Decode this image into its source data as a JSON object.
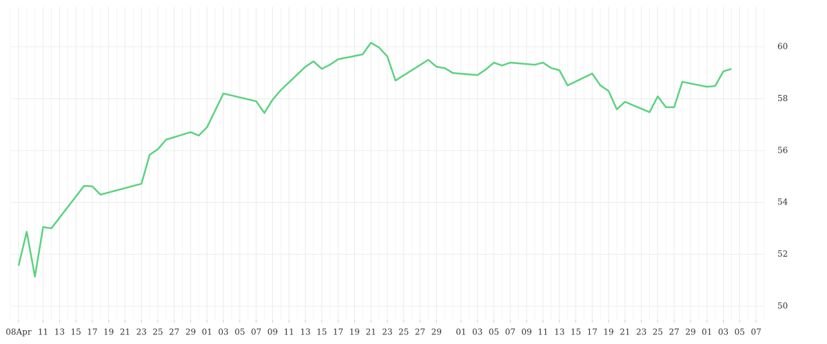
{
  "chart_data": {
    "type": "line",
    "x": [
      "04-08",
      "04-09",
      "04-10",
      "04-11",
      "04-12",
      "04-16",
      "04-17",
      "04-18",
      "04-23",
      "04-24",
      "04-25",
      "04-26",
      "04-29",
      "04-30",
      "05-01",
      "05-03",
      "05-07",
      "05-08",
      "05-09",
      "05-10",
      "05-13",
      "05-14",
      "05-15",
      "05-16",
      "05-17",
      "05-20",
      "05-21",
      "05-22",
      "05-23",
      "05-24",
      "05-28",
      "05-29",
      "05-30",
      "05-31",
      "06-03",
      "06-04",
      "06-05",
      "06-06",
      "06-07",
      "06-10",
      "06-11",
      "06-12",
      "06-13",
      "06-14",
      "06-17",
      "06-18",
      "06-19",
      "06-20",
      "06-21",
      "06-24",
      "06-25",
      "06-26",
      "06-27",
      "06-28",
      "07-01",
      "07-02",
      "07-03",
      "07-04"
    ],
    "series": [
      {
        "color": "#5ad27f",
        "values": [
          51.56,
          52.87,
          51.14,
          53.05,
          53.0,
          54.64,
          54.62,
          54.3,
          54.72,
          55.84,
          56.05,
          56.42,
          56.71,
          56.58,
          56.9,
          58.2,
          57.9,
          57.45,
          57.96,
          58.33,
          59.23,
          59.44,
          59.15,
          59.31,
          59.52,
          59.71,
          60.16,
          59.97,
          59.63,
          58.7,
          59.5,
          59.23,
          59.18,
          58.99,
          58.91,
          59.12,
          59.39,
          59.28,
          59.39,
          59.31,
          59.39,
          59.18,
          59.1,
          58.51,
          58.97,
          58.51,
          58.3,
          57.59,
          57.88,
          57.48,
          58.09,
          57.67,
          57.67,
          58.65,
          58.46,
          58.49,
          59.05,
          59.15
        ]
      }
    ],
    "xlim": [
      "04-07",
      "07-08"
    ],
    "xticks": [
      {
        "value": "04-08",
        "label": "08Apr"
      },
      {
        "value": "04-11",
        "label": "11"
      },
      {
        "value": "04-13",
        "label": "13"
      },
      {
        "value": "04-15",
        "label": "15"
      },
      {
        "value": "04-17",
        "label": "17"
      },
      {
        "value": "04-19",
        "label": "19"
      },
      {
        "value": "04-21",
        "label": "21"
      },
      {
        "value": "04-23",
        "label": "23"
      },
      {
        "value": "04-25",
        "label": "25"
      },
      {
        "value": "04-27",
        "label": "27"
      },
      {
        "value": "04-29",
        "label": "29"
      },
      {
        "value": "05-01",
        "label": "01"
      },
      {
        "value": "05-03",
        "label": "03"
      },
      {
        "value": "05-05",
        "label": "05"
      },
      {
        "value": "05-07",
        "label": "07"
      },
      {
        "value": "05-09",
        "label": "09"
      },
      {
        "value": "05-11",
        "label": "11"
      },
      {
        "value": "05-13",
        "label": "13"
      },
      {
        "value": "05-15",
        "label": "15"
      },
      {
        "value": "05-17",
        "label": "17"
      },
      {
        "value": "05-19",
        "label": "19"
      },
      {
        "value": "05-21",
        "label": "21"
      },
      {
        "value": "05-23",
        "label": "23"
      },
      {
        "value": "05-25",
        "label": "25"
      },
      {
        "value": "05-27",
        "label": "27"
      },
      {
        "value": "05-29",
        "label": "29"
      },
      {
        "value": "06-01",
        "label": "01"
      },
      {
        "value": "06-03",
        "label": "03"
      },
      {
        "value": "06-05",
        "label": "05"
      },
      {
        "value": "06-07",
        "label": "07"
      },
      {
        "value": "06-09",
        "label": "09"
      },
      {
        "value": "06-11",
        "label": "11"
      },
      {
        "value": "06-13",
        "label": "13"
      },
      {
        "value": "06-15",
        "label": "15"
      },
      {
        "value": "06-17",
        "label": "17"
      },
      {
        "value": "06-19",
        "label": "19"
      },
      {
        "value": "06-21",
        "label": "21"
      },
      {
        "value": "06-23",
        "label": "23"
      },
      {
        "value": "06-25",
        "label": "25"
      },
      {
        "value": "06-27",
        "label": "27"
      },
      {
        "value": "06-29",
        "label": "29"
      },
      {
        "value": "07-01",
        "label": "01"
      },
      {
        "value": "07-03",
        "label": "03"
      },
      {
        "value": "07-05",
        "label": "05"
      },
      {
        "value": "07-07",
        "label": "07"
      }
    ],
    "ylim": [
      49.47,
      61.54
    ],
    "yticks": [
      50,
      52,
      54,
      56,
      58,
      60
    ],
    "grid": true
  }
}
